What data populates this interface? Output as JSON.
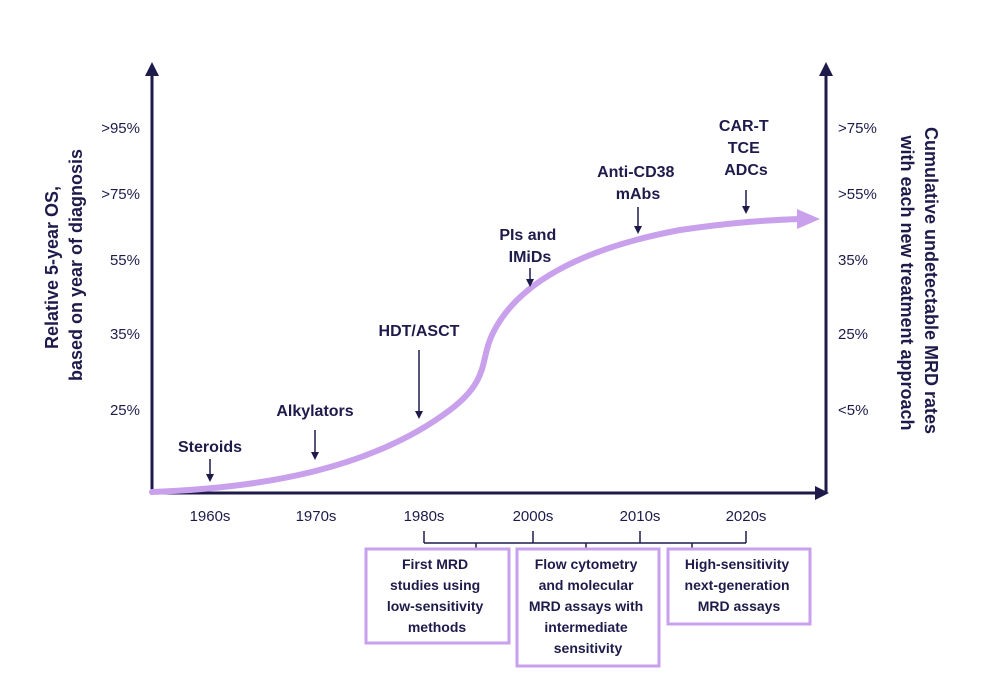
{
  "colors": {
    "axis": "#1e1b4b",
    "curve": "#c9a0ec",
    "box_border": "#c9a0ec",
    "text": "#1e1b4b"
  },
  "left_axis": {
    "title_lines": [
      "Relative 5-year OS,",
      "based on year of diagnosis"
    ],
    "ticks": [
      ">95%",
      ">75%",
      "55%",
      "35%",
      "25%"
    ]
  },
  "right_axis": {
    "title_lines": [
      "Cumulative undetectable MRD rates",
      "with each new treatment approach"
    ],
    "ticks": [
      ">75%",
      ">55%",
      "35%",
      "25%",
      "<5%"
    ]
  },
  "x_axis": {
    "ticks": [
      "1960s",
      "1970s",
      "1980s",
      "2000s",
      "2010s",
      "2020s"
    ]
  },
  "events": [
    {
      "lines": [
        "Steroids"
      ]
    },
    {
      "lines": [
        "Alkylators"
      ]
    },
    {
      "lines": [
        "HDT/ASCT"
      ]
    },
    {
      "lines": [
        "PIs and",
        "IMiDs"
      ]
    },
    {
      "lines": [
        "Anti-CD38",
        "mAbs"
      ]
    },
    {
      "lines": [
        "CAR-T",
        "TCE",
        "ADCs"
      ]
    }
  ],
  "mrd_boxes": [
    {
      "lines": [
        "First MRD",
        "studies using",
        "low-sensitivity",
        "methods"
      ]
    },
    {
      "lines": [
        "Flow cytometry",
        "and molecular",
        "MRD assays with",
        "intermediate",
        "sensitivity"
      ]
    },
    {
      "lines": [
        "High-sensitivity",
        "next-generation",
        "MRD assays"
      ]
    }
  ]
}
